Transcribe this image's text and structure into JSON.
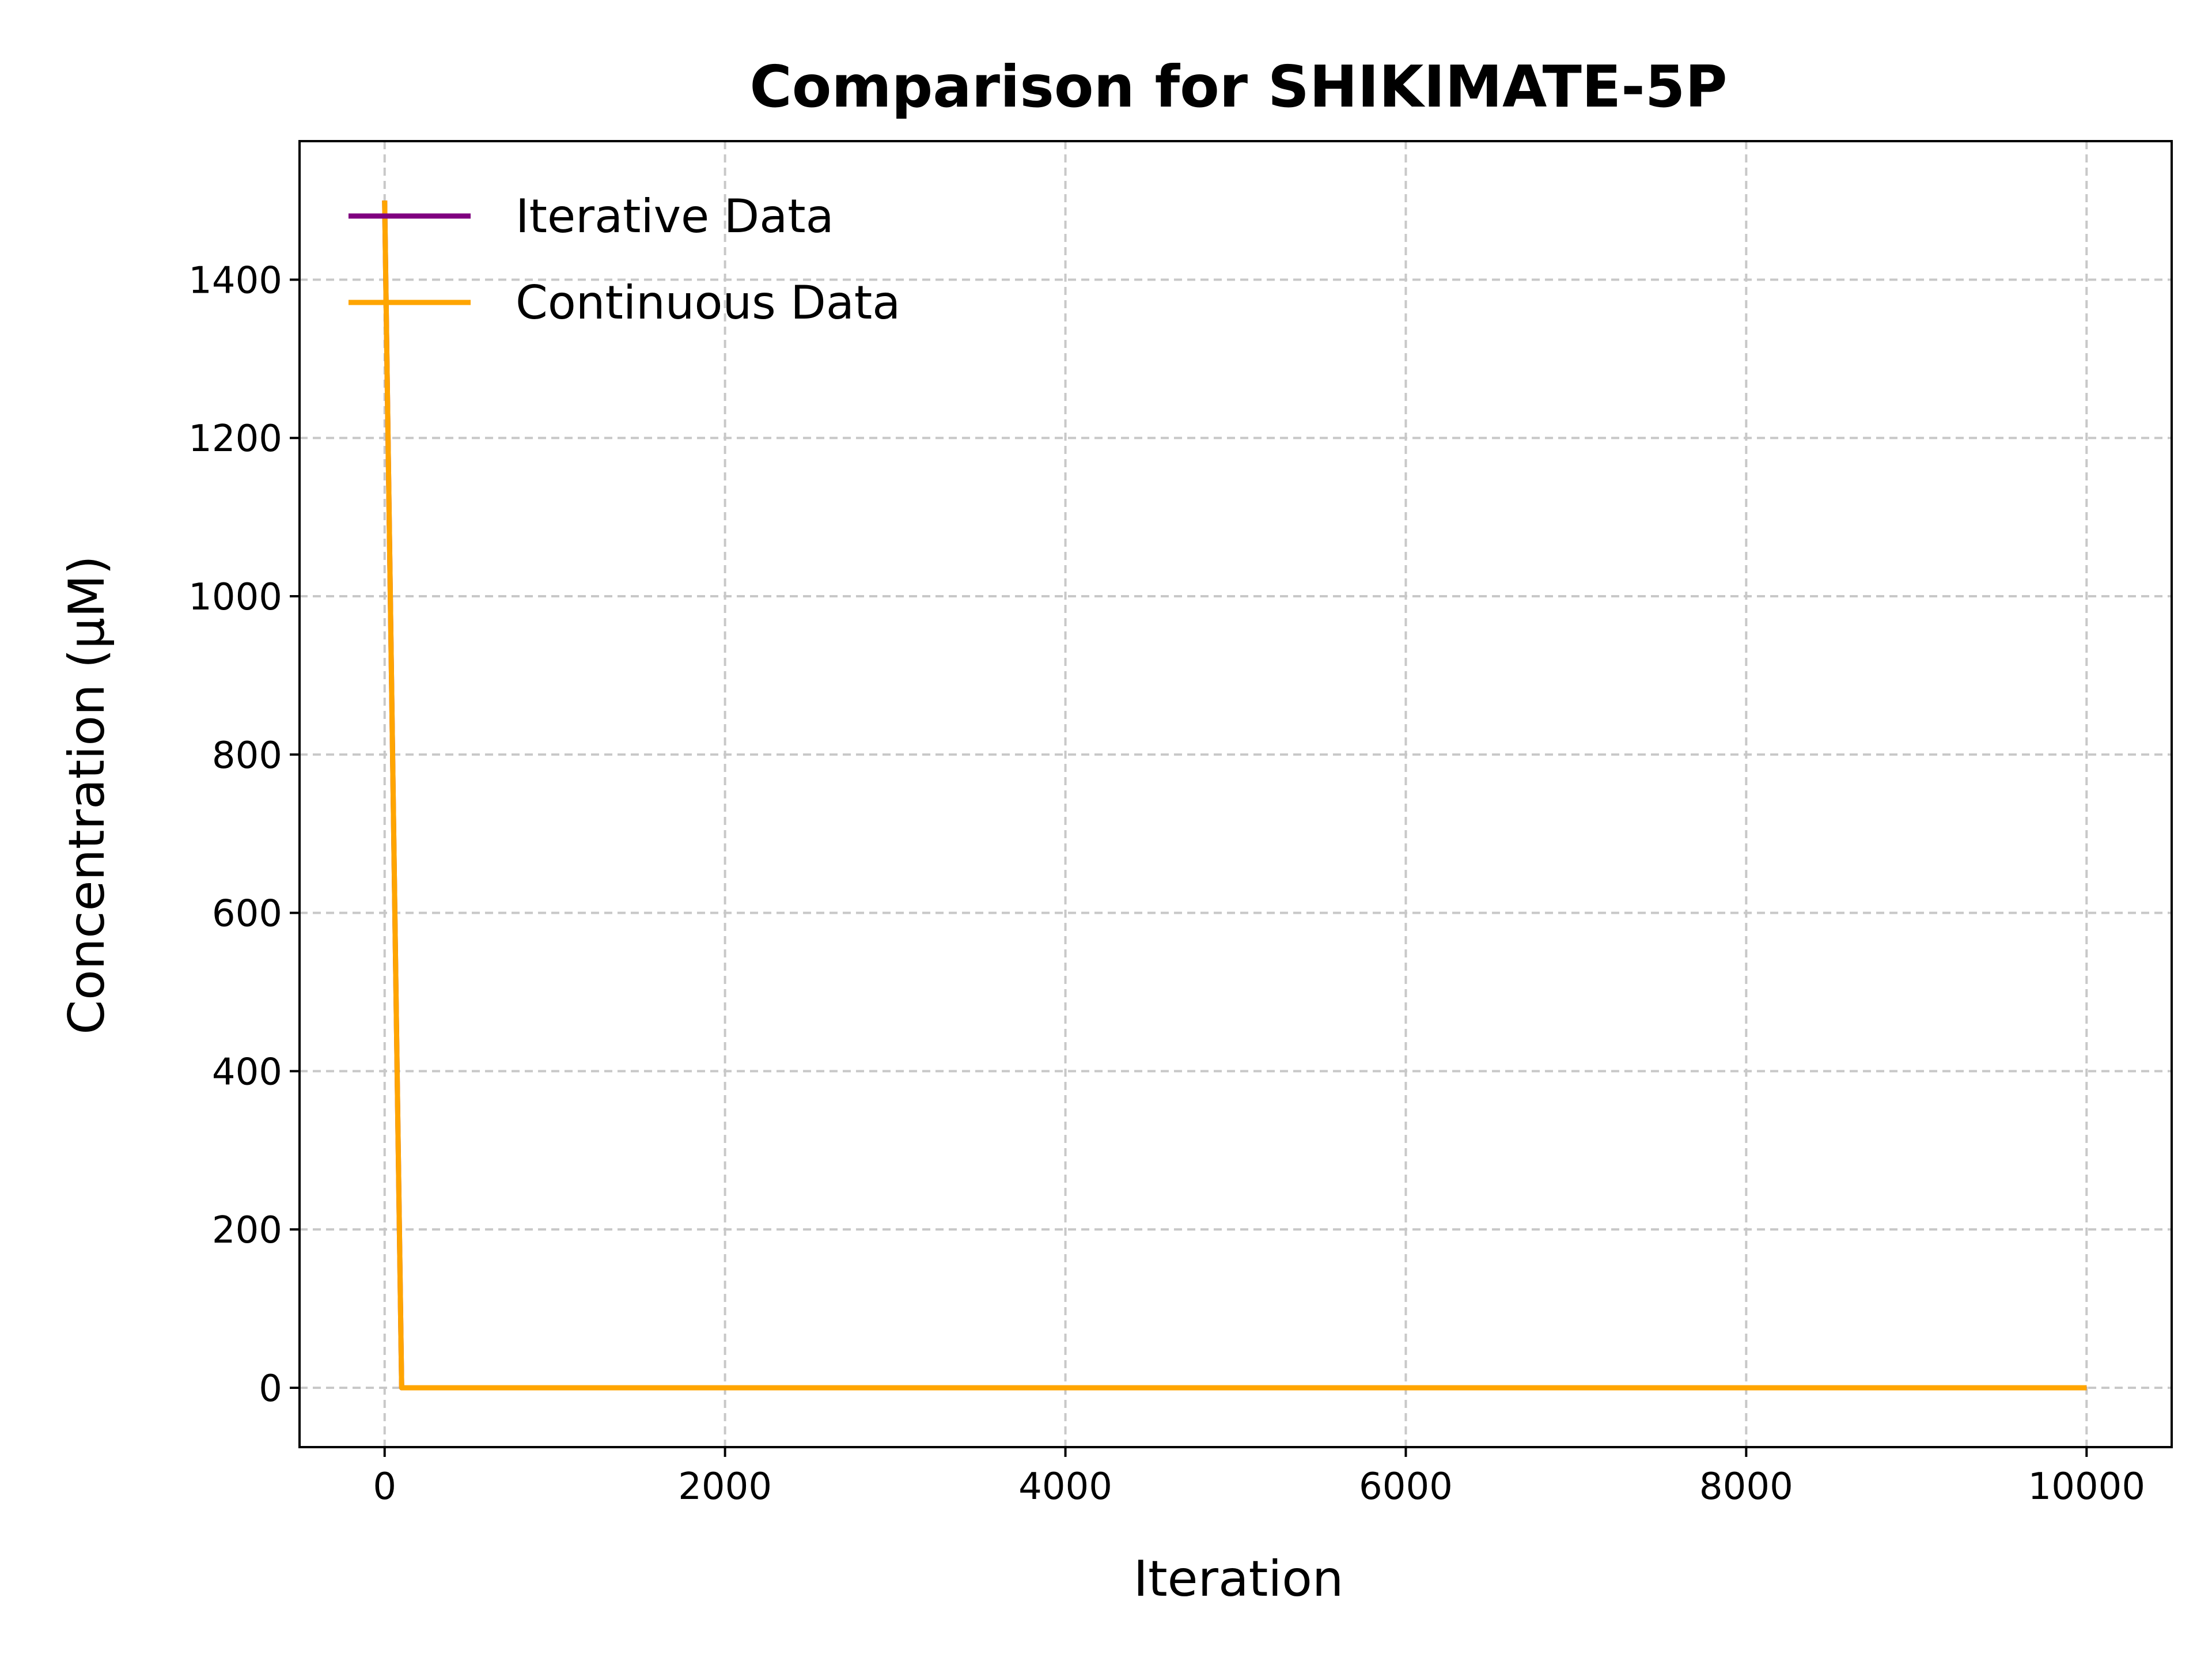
{
  "chart_data": {
    "type": "line",
    "title": "Comparison for SHIKIMATE-5P",
    "xlabel": "Iteration",
    "ylabel": "Concentration (μM)",
    "xlim": [
      -500,
      10500
    ],
    "ylim": [
      -75,
      1575
    ],
    "xticks": [
      0,
      2000,
      4000,
      6000,
      8000,
      10000
    ],
    "yticks": [
      0,
      200,
      400,
      600,
      800,
      1000,
      1200,
      1400
    ],
    "grid": true,
    "legend_position": "upper-left",
    "series": [
      {
        "name": "Iterative Data",
        "color": "#800080",
        "x": [
          0,
          100,
          10000
        ],
        "y": [
          1500,
          0,
          0
        ]
      },
      {
        "name": "Continuous Data",
        "color": "#FFA500",
        "x": [
          0,
          100,
          10000
        ],
        "y": [
          1500,
          0,
          0
        ]
      }
    ]
  }
}
